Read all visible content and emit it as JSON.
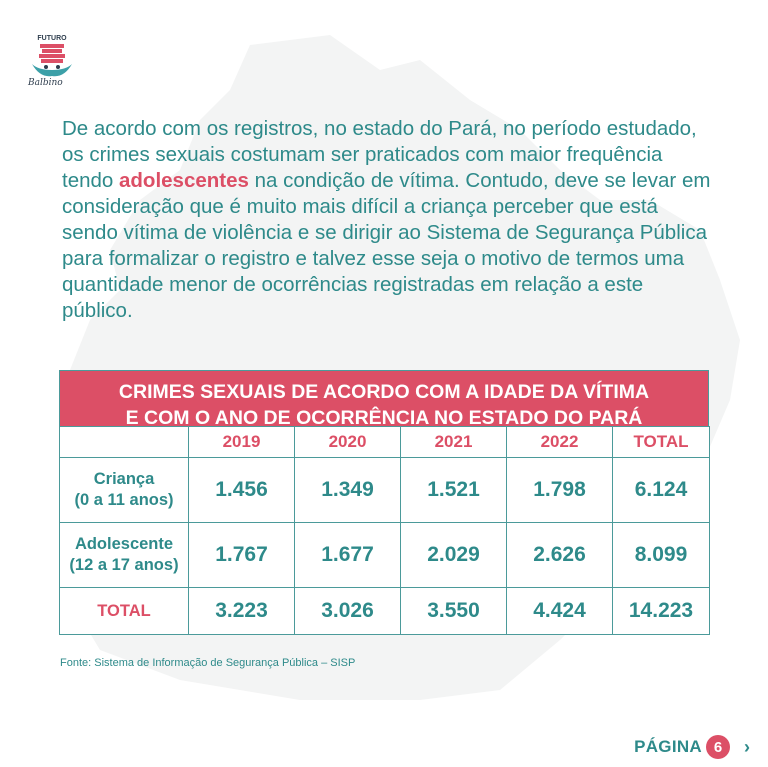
{
  "brand": {
    "arc_text": "FUTURO",
    "tagline": "Balbino"
  },
  "intro": {
    "before": "De acordo com os registros, no estado do Pará, no período estudado, os crimes sexuais costumam ser praticados com maior frequência tendo ",
    "highlight": "adolescentes",
    "after": " na condição de vítima. Contudo, deve se levar em consideração que é muito mais difícil a criança perceber que está sendo vítima de violência e se dirigir ao Sistema de Segurança Pública para formalizar o registro e talvez esse seja o motivo de termos uma quantidade menor de ocorrências registradas em relação a este público."
  },
  "table": {
    "title_line1": "CRIMES SEXUAIS DE ACORDO COM A IDADE DA VÍTIMA",
    "title_line2": "E COM O ANO DE OCORRÊNCIA NO ESTADO DO PARÁ",
    "columns": [
      "2019",
      "2020",
      "2021",
      "2022",
      "TOTAL"
    ],
    "rows": [
      {
        "label_line1": "Criança",
        "label_line2": "(0 a 11 anos)",
        "values": [
          "1.456",
          "1.349",
          "1.521",
          "1.798",
          "6.124"
        ]
      },
      {
        "label_line1": "Adolescente",
        "label_line2": "(12 a 17 anos)",
        "values": [
          "1.767",
          "1.677",
          "2.029",
          "2.626",
          "8.099"
        ]
      },
      {
        "label_line1": "TOTAL",
        "label_line2": "",
        "values": [
          "3.223",
          "3.026",
          "3.550",
          "4.424",
          "14.223"
        ]
      }
    ]
  },
  "source": "Fonte: Sistema de Informação de Segurança Pública – SISP",
  "pagination": {
    "label": "PÁGINA",
    "number": "6",
    "next_icon": "chevron-right"
  },
  "colors": {
    "teal": "#2e8a8a",
    "pink": "#dc4f66",
    "border": "#4b9a9a",
    "map": "#f3f4f4"
  }
}
